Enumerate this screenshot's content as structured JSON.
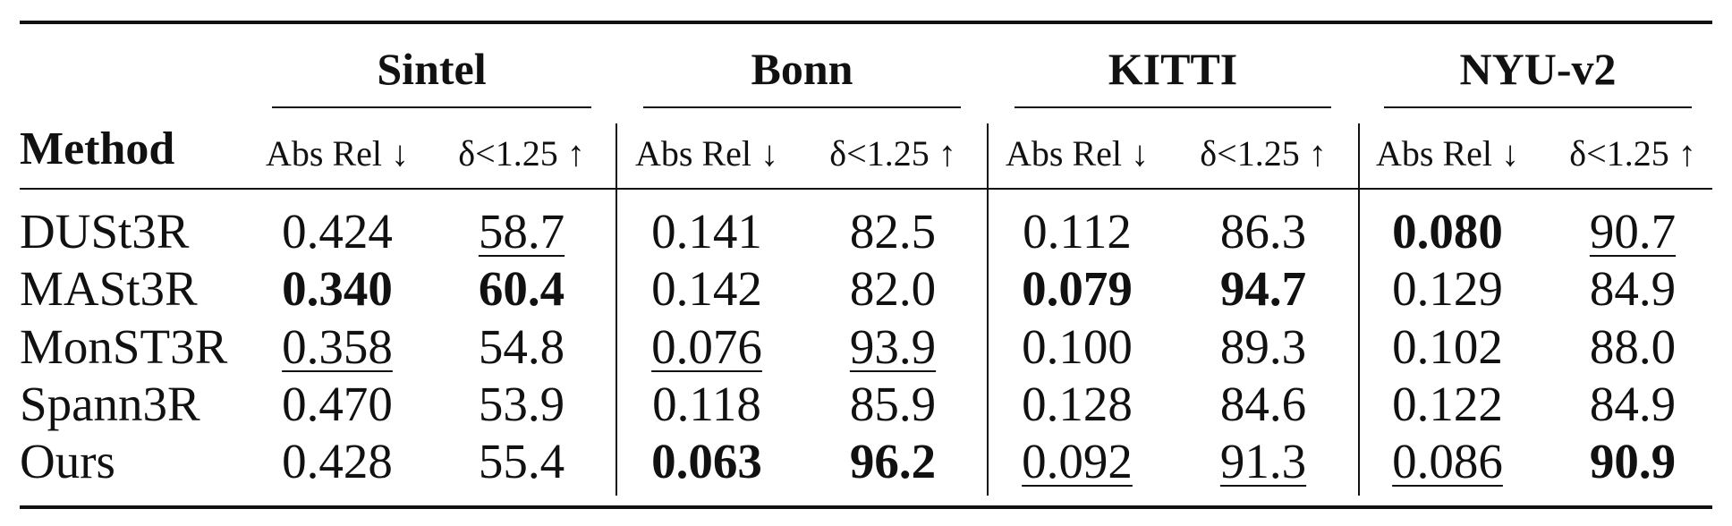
{
  "table": {
    "header": {
      "method": "Method",
      "groups": [
        {
          "name": "Sintel",
          "metrics": [
            "Abs Rel ↓",
            "δ<1.25 ↑"
          ]
        },
        {
          "name": "Bonn",
          "metrics": [
            "Abs Rel ↓",
            "δ<1.25 ↑"
          ]
        },
        {
          "name": "KITTI",
          "metrics": [
            "Abs Rel ↓",
            "δ<1.25 ↑"
          ]
        },
        {
          "name": "NYU-v2",
          "metrics": [
            "Abs Rel ↓",
            "δ<1.25 ↑"
          ]
        }
      ]
    },
    "rows": [
      [
        "DUSt3R",
        "0.424",
        {
          "text": "58.7",
          "style": "underline"
        },
        "0.141",
        "82.5",
        "0.112",
        "86.3",
        {
          "text": "0.080",
          "style": "bold"
        },
        {
          "text": "90.7",
          "style": "underline"
        }
      ],
      [
        "MASt3R",
        {
          "text": "0.340",
          "style": "bold"
        },
        {
          "text": "60.4",
          "style": "bold"
        },
        "0.142",
        "82.0",
        {
          "text": "0.079",
          "style": "bold"
        },
        {
          "text": "94.7",
          "style": "bold"
        },
        "0.129",
        "84.9"
      ],
      [
        "MonST3R",
        {
          "text": "0.358",
          "style": "underline"
        },
        "54.8",
        {
          "text": "0.076",
          "style": "underline"
        },
        {
          "text": "93.9",
          "style": "underline"
        },
        "0.100",
        "89.3",
        "0.102",
        "88.0"
      ],
      [
        "Spann3R",
        "0.470",
        "53.9",
        "0.118",
        "85.9",
        "0.128",
        "84.6",
        "0.122",
        "84.9"
      ],
      [
        "Ours",
        "0.428",
        "55.4",
        {
          "text": "0.063",
          "style": "bold"
        },
        {
          "text": "96.2",
          "style": "bold"
        },
        {
          "text": "0.092",
          "style": "underline"
        },
        {
          "text": "91.3",
          "style": "underline"
        },
        {
          "text": "0.086",
          "style": "underline"
        },
        {
          "text": "90.9",
          "style": "bold"
        }
      ]
    ]
  }
}
